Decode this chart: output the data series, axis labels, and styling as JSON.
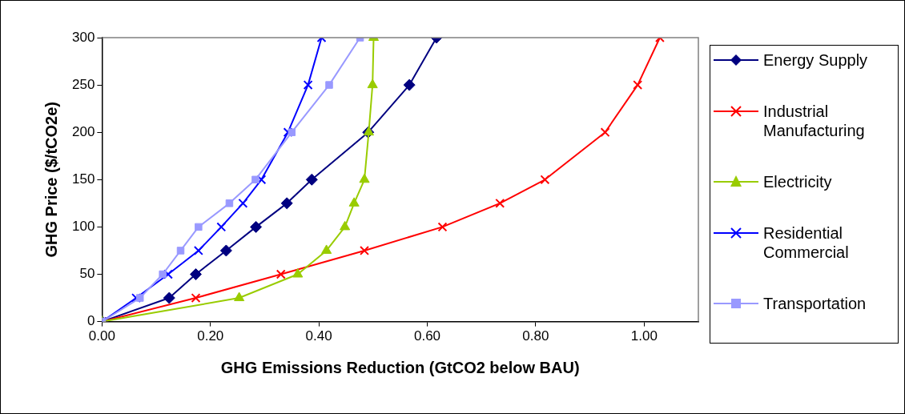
{
  "chart_data": {
    "type": "line",
    "xlabel": "GHG Emissions Reduction (GtCO2 below BAU)",
    "ylabel": "GHG Price ($/tCO2e)",
    "xlim": [
      0,
      1.1
    ],
    "xticks": [
      {
        "value": 0,
        "label": "0.00"
      },
      {
        "value": 0.2,
        "label": "0.20"
      },
      {
        "value": 0.4,
        "label": "0.40"
      },
      {
        "value": 0.6,
        "label": "0.60"
      },
      {
        "value": 0.8,
        "label": "0.80"
      },
      {
        "value": 1.0,
        "label": "1.00"
      }
    ],
    "ylim": [
      0,
      300
    ],
    "yticks": [
      0,
      50,
      100,
      150,
      200,
      250,
      300
    ],
    "grid": false,
    "legend": "right",
    "line_style": "solid",
    "series": [
      {
        "name": "Energy Supply",
        "color": "#000080",
        "marker": "diamond",
        "x": [
          0,
          0.124,
          0.173,
          0.229,
          0.284,
          0.341,
          0.387,
          0.491,
          0.567,
          0.617
        ],
        "values": [
          0,
          25,
          50,
          75,
          100,
          125,
          150,
          200,
          250,
          300
        ]
      },
      {
        "name": "Industrial Manufacturing",
        "color": "#ff0000",
        "marker": "cross",
        "x": [
          0,
          0.173,
          0.33,
          0.484,
          0.628,
          0.734,
          0.817,
          0.928,
          0.988,
          1.029
        ],
        "values": [
          0,
          25,
          50,
          75,
          100,
          125,
          150,
          200,
          250,
          300
        ]
      },
      {
        "name": "Electricity",
        "color": "#99cc00",
        "marker": "triangle",
        "x": [
          0,
          0.253,
          0.361,
          0.414,
          0.448,
          0.465,
          0.484,
          0.492,
          0.499,
          0.501
        ],
        "values": [
          0,
          25,
          50,
          75,
          100,
          125,
          150,
          200,
          250,
          300
        ]
      },
      {
        "name": "Residential Commercial",
        "color": "#0000ff",
        "marker": "cross",
        "x": [
          0,
          0.063,
          0.122,
          0.178,
          0.22,
          0.26,
          0.294,
          0.343,
          0.38,
          0.405
        ],
        "values": [
          0,
          25,
          50,
          75,
          100,
          125,
          150,
          200,
          250,
          300
        ]
      },
      {
        "name": "Transportation",
        "color": "#9999ff",
        "marker": "square",
        "x": [
          0,
          0.07,
          0.112,
          0.145,
          0.178,
          0.235,
          0.283,
          0.35,
          0.419,
          0.476
        ],
        "values": [
          0,
          25,
          50,
          75,
          100,
          125,
          150,
          200,
          250,
          300
        ]
      }
    ]
  }
}
